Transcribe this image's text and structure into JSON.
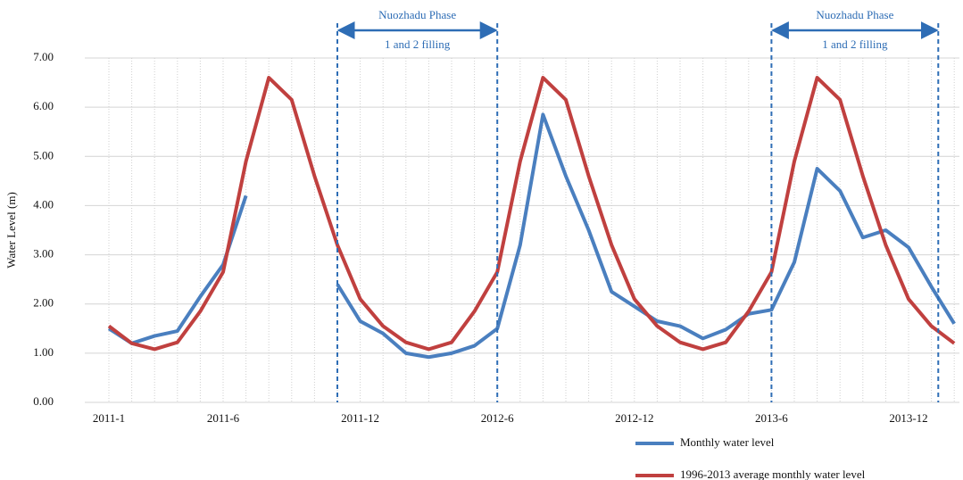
{
  "chart_data": {
    "type": "line",
    "ylabel": "Water Level (m)",
    "categories": [
      "2011-1",
      null,
      null,
      null,
      null,
      "2011-6",
      null,
      null,
      null,
      null,
      null,
      "2011-12",
      null,
      null,
      null,
      null,
      null,
      "2012-6",
      null,
      null,
      null,
      null,
      null,
      "2012-12",
      null,
      null,
      null,
      null,
      null,
      "2013-6",
      null,
      null,
      null,
      null,
      null,
      "2013-12",
      null,
      null
    ],
    "series": [
      {
        "name": "Monthly water level",
        "color": "#4a7fbf",
        "values": [
          1.5,
          1.2,
          1.35,
          1.45,
          2.15,
          2.8,
          4.2,
          null,
          null,
          null,
          2.4,
          1.65,
          1.4,
          1.0,
          0.92,
          1.0,
          1.15,
          1.5,
          3.2,
          5.85,
          4.6,
          3.5,
          2.25,
          1.95,
          1.65,
          1.55,
          1.3,
          1.48,
          1.8,
          1.88,
          2.85,
          4.75,
          4.3,
          3.35,
          3.5,
          3.15,
          2.35,
          1.6
        ]
      },
      {
        "name": "1996-2013 average monthly water level",
        "color": "#c0403f",
        "values": [
          1.55,
          1.2,
          1.08,
          1.22,
          1.85,
          2.65,
          4.9,
          6.6,
          6.15,
          4.6,
          3.2,
          2.1,
          1.55,
          1.22,
          1.08,
          1.22,
          1.85,
          2.65,
          4.9,
          6.6,
          6.15,
          4.6,
          3.2,
          2.1,
          1.55,
          1.22,
          1.08,
          1.22,
          1.85,
          2.65,
          4.9,
          6.6,
          6.15,
          4.6,
          3.2,
          2.1,
          1.55,
          1.2
        ]
      }
    ],
    "ylim": [
      0,
      7
    ],
    "yticks": [
      {
        "value": 0,
        "label": "0.00"
      },
      {
        "value": 1,
        "label": "1.00"
      },
      {
        "value": 2,
        "label": "2.00"
      },
      {
        "value": 3,
        "label": "3.00"
      },
      {
        "value": 4,
        "label": "4.00"
      },
      {
        "value": 5,
        "label": "5.00"
      },
      {
        "value": 6,
        "label": "6.00"
      },
      {
        "value": 7,
        "label": "7.00"
      }
    ],
    "grid": true,
    "annotations": [
      {
        "line1": "Nuozhadu Phase",
        "line2": "1 and 2 filling"
      },
      {
        "line1": "Nuozhadu Phase",
        "line2": "1 and 2 filling"
      }
    ]
  }
}
